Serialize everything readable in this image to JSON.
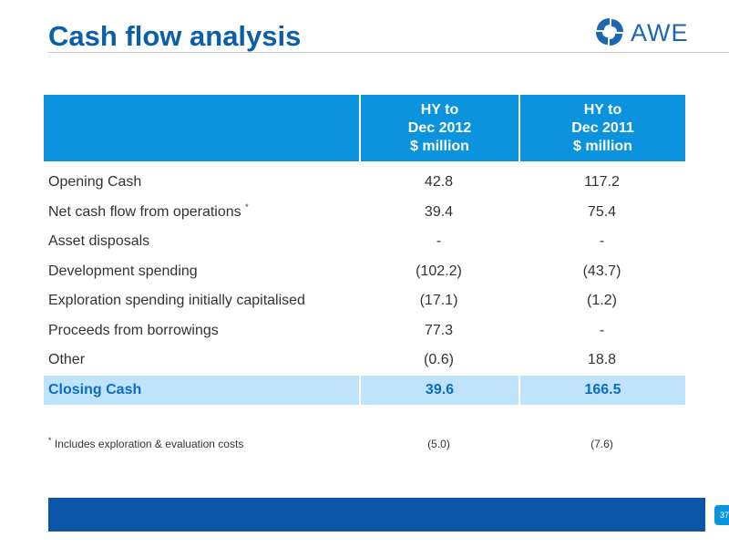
{
  "title": "Cash flow analysis",
  "logo": {
    "text": "AWE",
    "icon": "awe-logo-icon",
    "color": "#1d67b0"
  },
  "colors": {
    "header_bg": "#0c93de",
    "title": "#0b5ea8",
    "closing_bg": "#bfe3fb",
    "closing_text": "#0b6cc2",
    "bottom_bar": "#0a55a6"
  },
  "table": {
    "columns": [
      {
        "line1": "HY to",
        "line2": "Dec 2012",
        "line3": "$ million"
      },
      {
        "line1": "HY to",
        "line2": "Dec 2011",
        "line3": "$ million"
      }
    ],
    "rows": [
      {
        "label": "Opening Cash",
        "marker": "",
        "v1": "42.8",
        "v2": "117.2"
      },
      {
        "label": "Net cash flow from operations",
        "marker": "*",
        "v1": "39.4",
        "v2": "75.4"
      },
      {
        "label": "Asset disposals",
        "marker": "",
        "v1": "-",
        "v2": "-"
      },
      {
        "label": "Development spending",
        "marker": "",
        "v1": "(102.2)",
        "v2": "(43.7)"
      },
      {
        "label": "Exploration spending initially capitalised",
        "marker": "",
        "v1": "(17.1)",
        "v2": "(1.2)"
      },
      {
        "label": "Proceeds from borrowings",
        "marker": "",
        "v1": "77.3",
        "v2": "-"
      },
      {
        "label": "Other",
        "marker": "",
        "v1": "(0.6)",
        "v2": "18.8"
      }
    ],
    "closing": {
      "label": "Closing Cash",
      "v1": "39.6",
      "v2": "166.5"
    }
  },
  "footnote": {
    "marker": "*",
    "text": "Includes exploration & evaluation costs",
    "v1": "(5.0)",
    "v2": "(7.6)"
  },
  "page_number": "37"
}
